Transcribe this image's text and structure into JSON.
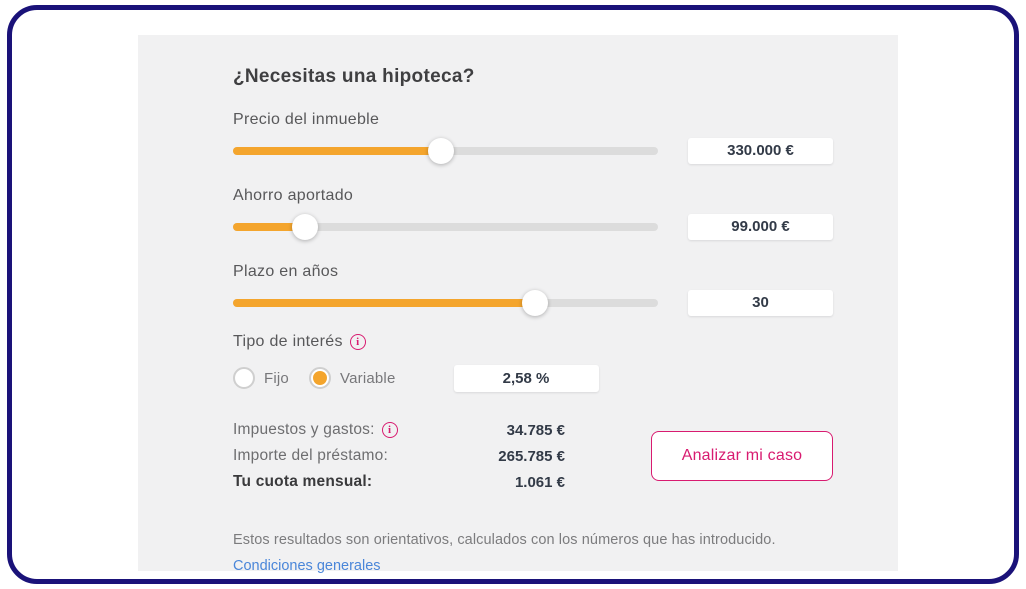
{
  "title": "¿Necesitas una hipoteca?",
  "colors": {
    "frame_border": "#1a1279",
    "card_background": "#f1f1f2",
    "slider_fill": "#f4a52d",
    "slider_track": "#dcdcdc",
    "accent_pink": "#d81b70",
    "link_blue": "#4a86d9",
    "value_text": "#323a47"
  },
  "fields": [
    {
      "label": "Precio del inmueble",
      "value": "330.000 €",
      "percent": 49
    },
    {
      "label": "Ahorro aportado",
      "value": "99.000 €",
      "percent": 17
    },
    {
      "label": "Plazo en años",
      "value": "30",
      "percent": 71
    }
  ],
  "interest": {
    "label": "Tipo de interés",
    "info_icon": "i",
    "options": [
      {
        "label": "Fijo",
        "selected": false
      },
      {
        "label": "Variable",
        "selected": true
      }
    ],
    "value": "2,58 %"
  },
  "summary": {
    "rows": [
      {
        "label": "Impuestos y gastos:",
        "value": "34.785 €",
        "has_info": true,
        "bold": false
      },
      {
        "label": "Importe del préstamo:",
        "value": "265.785 €",
        "has_info": false,
        "bold": false
      },
      {
        "label": "Tu cuota mensual:",
        "value": "1.061 €",
        "has_info": false,
        "bold": true
      }
    ]
  },
  "cta": {
    "label": "Analizar mi caso"
  },
  "footer": {
    "disclaimer": "Estos resultados son orientativos, calculados con los números que has introducido.",
    "link": "Condiciones generales"
  }
}
